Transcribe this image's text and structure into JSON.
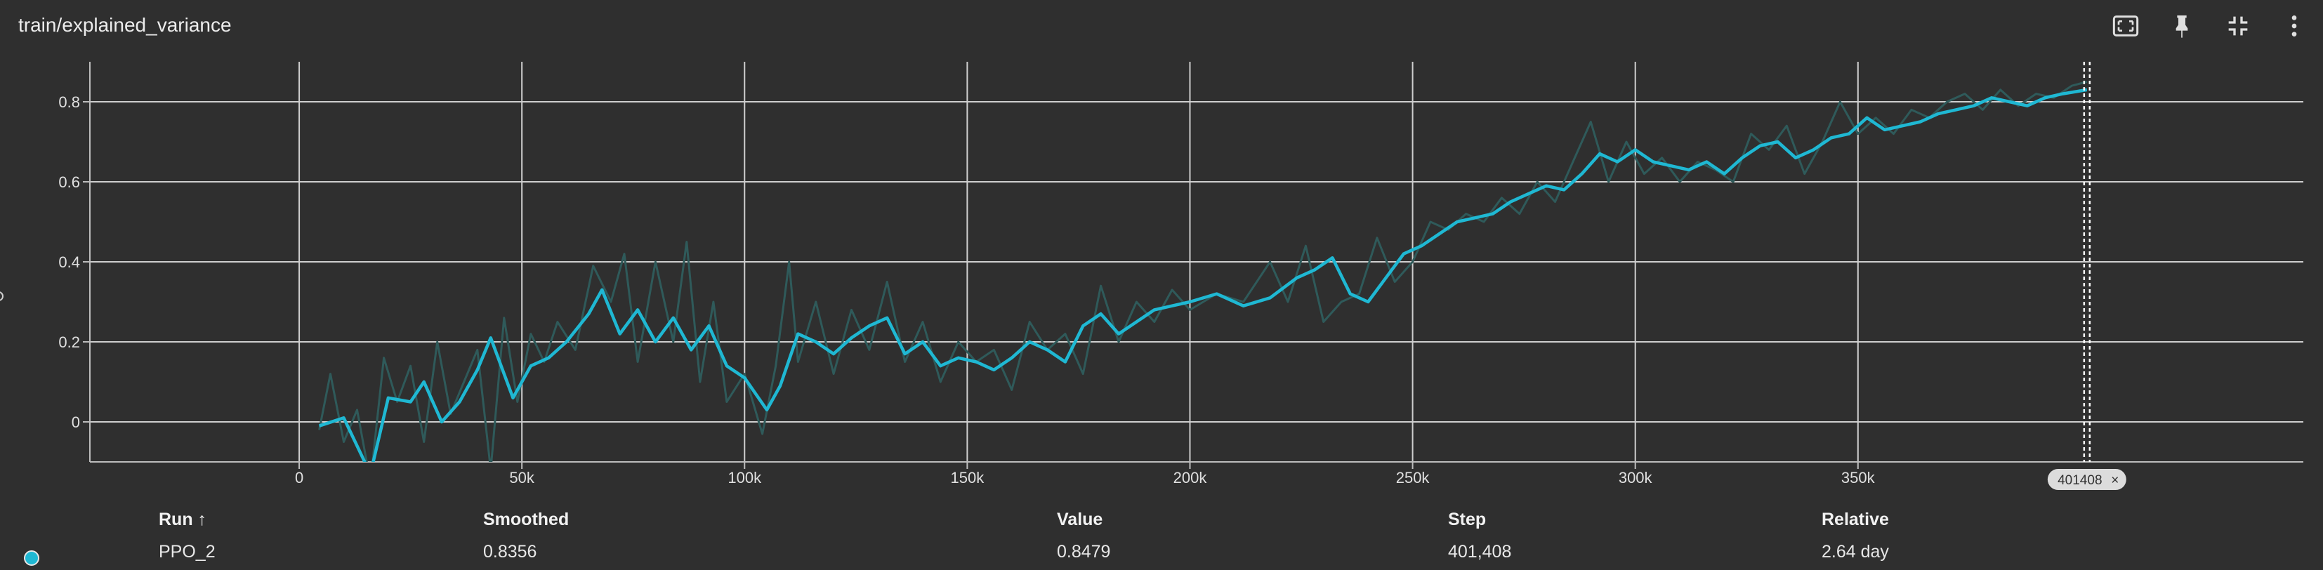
{
  "card": {
    "title": "train/explained_variance"
  },
  "toolbar": {
    "icons": [
      "fit-domain-icon",
      "pin-icon",
      "collapse-icon",
      "more-vert-icon"
    ]
  },
  "colors": {
    "smoothed": "#1fb8d3",
    "raw": "#2f5a5a",
    "background": "#2f2f2f",
    "grid": "#cfcfcf"
  },
  "chart_data": {
    "type": "line",
    "title": "train/explained_variance",
    "xlabel": "",
    "ylabel": "",
    "xlim": [
      -47000,
      450000
    ],
    "ylim": [
      -0.1,
      0.9
    ],
    "x_ticks": [
      0,
      50000,
      100000,
      150000,
      200000,
      250000,
      300000,
      350000
    ],
    "x_tick_labels": [
      "0",
      "50k",
      "100k",
      "150k",
      "200k",
      "250k",
      "300k",
      "350k"
    ],
    "y_ticks": [
      0,
      0.2,
      0.4,
      0.6,
      0.8
    ],
    "y_tick_labels": [
      "0",
      "0.2",
      "0.4",
      "0.6",
      "0.8"
    ],
    "grid": true,
    "cursor_step": 401408,
    "cursor_label": "401408",
    "series": [
      {
        "name": "PPO_2",
        "role": "smoothed",
        "x": [
          4500,
          10000,
          16000,
          20000,
          25000,
          28000,
          32000,
          36000,
          40000,
          43000,
          48000,
          52000,
          56000,
          60000,
          65000,
          68000,
          72000,
          76000,
          80000,
          84000,
          88000,
          92000,
          96000,
          100000,
          105000,
          108000,
          112000,
          116000,
          120000,
          124000,
          128000,
          132000,
          136000,
          140000,
          144000,
          148000,
          152000,
          156000,
          160000,
          164000,
          168000,
          172000,
          176000,
          180000,
          184000,
          188000,
          192000,
          196000,
          200000,
          206000,
          212000,
          218000,
          224000,
          228000,
          232000,
          236000,
          240000,
          244000,
          248000,
          252000,
          256000,
          260000,
          264000,
          268000,
          272000,
          276000,
          280000,
          284000,
          288000,
          292000,
          296000,
          300000,
          304000,
          308000,
          312000,
          316000,
          320000,
          324000,
          328000,
          332000,
          336000,
          340000,
          344000,
          348000,
          352000,
          356000,
          360000,
          364000,
          368000,
          372000,
          376000,
          380000,
          384000,
          388000,
          392000,
          396000,
          401408
        ],
        "y": [
          -0.01,
          0.01,
          -0.13,
          0.06,
          0.05,
          0.1,
          0.0,
          0.05,
          0.13,
          0.21,
          0.06,
          0.14,
          0.16,
          0.2,
          0.27,
          0.33,
          0.22,
          0.28,
          0.2,
          0.26,
          0.18,
          0.24,
          0.14,
          0.11,
          0.03,
          0.09,
          0.22,
          0.2,
          0.17,
          0.21,
          0.24,
          0.26,
          0.17,
          0.2,
          0.14,
          0.16,
          0.15,
          0.13,
          0.16,
          0.2,
          0.18,
          0.15,
          0.24,
          0.27,
          0.22,
          0.25,
          0.28,
          0.29,
          0.3,
          0.32,
          0.29,
          0.31,
          0.36,
          0.38,
          0.41,
          0.32,
          0.3,
          0.36,
          0.42,
          0.44,
          0.47,
          0.5,
          0.51,
          0.52,
          0.55,
          0.57,
          0.59,
          0.58,
          0.62,
          0.67,
          0.65,
          0.68,
          0.65,
          0.64,
          0.63,
          0.65,
          0.62,
          0.66,
          0.69,
          0.7,
          0.66,
          0.68,
          0.71,
          0.72,
          0.76,
          0.73,
          0.74,
          0.75,
          0.77,
          0.78,
          0.79,
          0.81,
          0.8,
          0.79,
          0.81,
          0.82,
          0.83
        ]
      },
      {
        "name": "PPO_2",
        "role": "raw",
        "x": [
          4500,
          7000,
          10000,
          13000,
          16000,
          19000,
          22000,
          25000,
          28000,
          31000,
          34000,
          37000,
          40000,
          43000,
          46000,
          49000,
          52000,
          55000,
          58000,
          62000,
          66000,
          70000,
          73000,
          76000,
          80000,
          84000,
          87000,
          90000,
          93000,
          96000,
          100000,
          104000,
          107000,
          110000,
          112000,
          116000,
          120000,
          124000,
          128000,
          132000,
          136000,
          140000,
          144000,
          148000,
          152000,
          156000,
          160000,
          164000,
          168000,
          172000,
          176000,
          180000,
          184000,
          188000,
          192000,
          196000,
          200000,
          206000,
          212000,
          218000,
          222000,
          226000,
          230000,
          234000,
          238000,
          242000,
          246000,
          250000,
          254000,
          258000,
          262000,
          266000,
          270000,
          274000,
          278000,
          282000,
          286000,
          290000,
          294000,
          298000,
          302000,
          306000,
          310000,
          314000,
          318000,
          322000,
          326000,
          330000,
          334000,
          338000,
          342000,
          346000,
          350000,
          354000,
          358000,
          362000,
          366000,
          370000,
          374000,
          378000,
          382000,
          386000,
          390000,
          394000,
          398000,
          401408
        ],
        "y": [
          -0.02,
          0.12,
          -0.05,
          0.03,
          -0.15,
          0.16,
          0.05,
          0.14,
          -0.05,
          0.2,
          0.02,
          0.1,
          0.18,
          -0.12,
          0.26,
          0.05,
          0.22,
          0.15,
          0.25,
          0.18,
          0.39,
          0.3,
          0.42,
          0.15,
          0.4,
          0.2,
          0.45,
          0.1,
          0.3,
          0.05,
          0.12,
          -0.03,
          0.14,
          0.4,
          0.15,
          0.3,
          0.12,
          0.28,
          0.18,
          0.35,
          0.15,
          0.25,
          0.1,
          0.2,
          0.15,
          0.18,
          0.08,
          0.25,
          0.18,
          0.22,
          0.12,
          0.34,
          0.2,
          0.3,
          0.25,
          0.33,
          0.28,
          0.32,
          0.3,
          0.4,
          0.3,
          0.44,
          0.25,
          0.3,
          0.32,
          0.46,
          0.35,
          0.4,
          0.5,
          0.48,
          0.52,
          0.5,
          0.56,
          0.52,
          0.6,
          0.55,
          0.65,
          0.75,
          0.6,
          0.7,
          0.62,
          0.66,
          0.6,
          0.65,
          0.63,
          0.6,
          0.72,
          0.68,
          0.74,
          0.62,
          0.7,
          0.8,
          0.72,
          0.76,
          0.72,
          0.78,
          0.76,
          0.8,
          0.82,
          0.78,
          0.83,
          0.79,
          0.82,
          0.81,
          0.84,
          0.85
        ]
      }
    ]
  },
  "table": {
    "headers": {
      "run": "Run ↑",
      "smoothed": "Smoothed",
      "value": "Value",
      "step": "Step",
      "relative": "Relative"
    },
    "rows": [
      {
        "run": "PPO_2",
        "smoothed": "0.8356",
        "value": "0.8479",
        "step": "401,408",
        "relative": "2.64 day",
        "color": "#1fb8d3"
      }
    ]
  }
}
